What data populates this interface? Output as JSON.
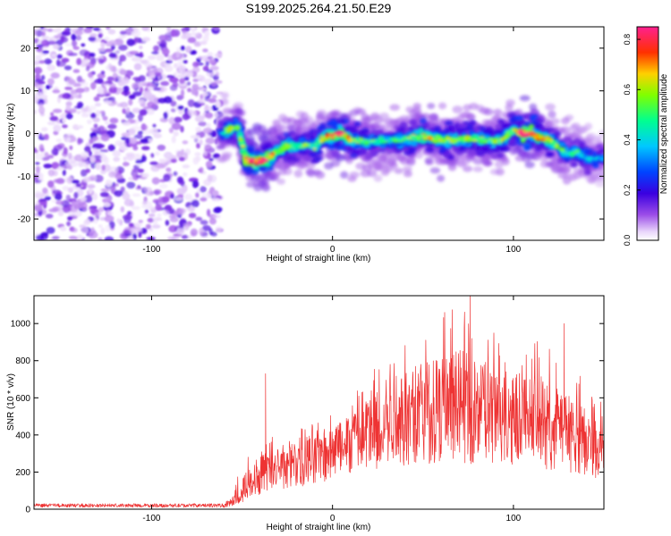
{
  "title": "S199.2025.264.21.50.E29",
  "colors": {
    "snr_line": "#ee3333",
    "axes": "#000000",
    "background": "#ffffff"
  },
  "chart_data": [
    {
      "type": "heatmap",
      "title": "S199.2025.264.21.50.E29",
      "xlabel": "Height of straight line (km)",
      "ylabel": "Frequency (Hz)",
      "xlim": [
        -165,
        150
      ],
      "ylim": [
        -25,
        25
      ],
      "x_ticks": [
        -100,
        0,
        100
      ],
      "y_ticks": [
        -20,
        -10,
        0,
        10,
        20
      ],
      "colorbar": {
        "label": "Normalized spectral amplitude",
        "range": [
          0,
          0.85
        ],
        "ticks": [
          0.0,
          0.2,
          0.4,
          0.6,
          0.8
        ],
        "colormap": "rainbow (white-violet-blue-cyan-green-yellow-red-magenta)"
      },
      "noise_region_x": [
        -165,
        -62
      ],
      "signal_ridge": {
        "x": [
          -62,
          -57,
          -52,
          -48,
          -44,
          -40,
          -36,
          -30,
          -25,
          -20,
          -15,
          -10,
          -5,
          0,
          5,
          10,
          20,
          30,
          40,
          50,
          60,
          70,
          80,
          90,
          95,
          100,
          105,
          110,
          115,
          120,
          125,
          130,
          135,
          140,
          145,
          150
        ],
        "frequency_hz": [
          0,
          1,
          1.5,
          -6,
          -6.5,
          -6.5,
          -6,
          -4,
          -3,
          -3,
          -2.5,
          -3,
          -1,
          -0.5,
          0,
          -1.5,
          -2,
          -1.5,
          -1.5,
          -0.5,
          -1.5,
          -1.5,
          -1,
          -2,
          -1,
          1,
          0,
          0,
          -1,
          -1.5,
          -3,
          -5,
          -4,
          -5.5,
          -6,
          -5.5
        ],
        "amplitude": [
          0.4,
          0.55,
          0.5,
          0.7,
          0.8,
          0.82,
          0.75,
          0.5,
          0.6,
          0.5,
          0.5,
          0.55,
          0.6,
          0.7,
          0.8,
          0.55,
          0.5,
          0.45,
          0.5,
          0.6,
          0.6,
          0.5,
          0.55,
          0.5,
          0.55,
          0.6,
          0.75,
          0.75,
          0.6,
          0.55,
          0.5,
          0.45,
          0.45,
          0.4,
          0.35,
          0.3
        ]
      }
    },
    {
      "type": "line",
      "title": "",
      "xlabel": "Height of straight line (km)",
      "ylabel": "SNR (10 * v/v)",
      "xlim": [
        -165,
        150
      ],
      "ylim": [
        0,
        1150
      ],
      "x_ticks": [
        -100,
        0,
        100
      ],
      "y_ticks": [
        0,
        200,
        400,
        600,
        800,
        1000
      ],
      "series": [
        {
          "name": "SNR",
          "envelope_x": [
            -165,
            -60,
            -55,
            -50,
            -45,
            -40,
            -30,
            -20,
            -10,
            0,
            10,
            20,
            30,
            40,
            50,
            60,
            70,
            80,
            90,
            100,
            110,
            120,
            130,
            140,
            150
          ],
          "envelope_mean": [
            18,
            18,
            40,
            80,
            140,
            180,
            210,
            260,
            300,
            340,
            390,
            440,
            490,
            520,
            540,
            560,
            550,
            540,
            530,
            520,
            500,
            470,
            430,
            380,
            330
          ],
          "envelope_peak": [
            30,
            30,
            100,
            250,
            350,
            380,
            420,
            440,
            480,
            530,
            620,
            760,
            920,
            960,
            1000,
            1060,
            1140,
            1000,
            960,
            940,
            920,
            880,
            780,
            720,
            650
          ],
          "notable_spikes": [
            {
              "x": -37,
              "y": 730
            },
            {
              "x": 62,
              "y": 1060
            },
            {
              "x": 76,
              "y": 1150
            },
            {
              "x": 128,
              "y": 1000
            }
          ]
        }
      ]
    }
  ]
}
